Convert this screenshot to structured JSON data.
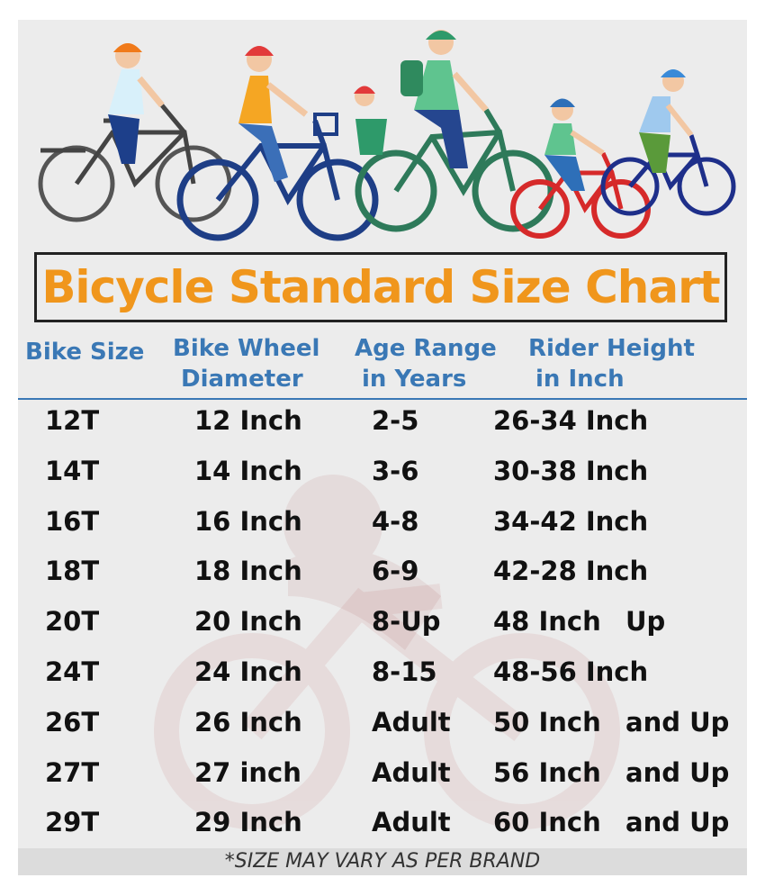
{
  "title": "Bicycle Standard Size Chart",
  "headers": {
    "bike_size": "Bike Size",
    "wheel_l1": "Bike Wheel",
    "wheel_l2": "Diameter",
    "age_l1": "Age Range",
    "age_l2": "in Years",
    "height_l1": "Rider Height",
    "height_l2": "in Inch"
  },
  "rows": [
    {
      "size": "12T",
      "wheel": "12 Inch",
      "age": "2-5",
      "height": "26-34 Inch",
      "suffix": ""
    },
    {
      "size": "14T",
      "wheel": "14 Inch",
      "age": "3-6",
      "height": "30-38 Inch",
      "suffix": ""
    },
    {
      "size": "16T",
      "wheel": "16 Inch",
      "age": "4-8",
      "height": "34-42 Inch",
      "suffix": ""
    },
    {
      "size": "18T",
      "wheel": "18 Inch",
      "age": "6-9",
      "height": "42-28 Inch",
      "suffix": ""
    },
    {
      "size": "20T",
      "wheel": "20 Inch",
      "age": "8-Up",
      "height": "48 Inch",
      "suffix": "Up"
    },
    {
      "size": "24T",
      "wheel": "24 Inch",
      "age": "8-15",
      "height": "48-56 Inch",
      "suffix": ""
    },
    {
      "size": "26T",
      "wheel": "26 Inch",
      "age": "Adult",
      "height": "50 Inch",
      "suffix": "and Up"
    },
    {
      "size": "27T",
      "wheel": "27 inch",
      "age": "Adult",
      "height": "56 Inch",
      "suffix": "and Up"
    },
    {
      "size": "29T",
      "wheel": "29 Inch",
      "age": "Adult",
      "height": "60 Inch",
      "suffix": "and Up"
    }
  ],
  "footer": "*SIZE MAY VARY AS PER BRAND",
  "colors": {
    "title": "#f0961c",
    "header": "#3a78b5",
    "background": "#ececec"
  }
}
